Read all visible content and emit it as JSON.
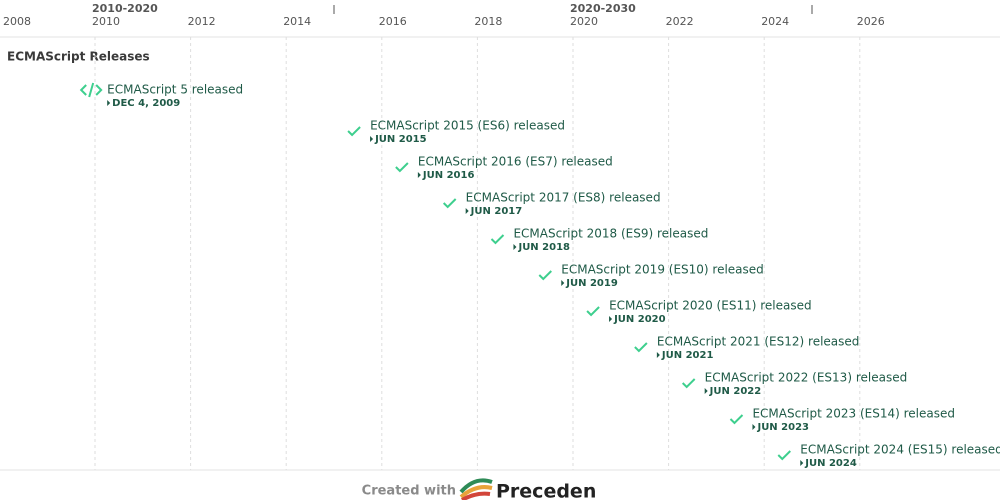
{
  "header": {
    "decades": [
      "2010-2020",
      "2020-2030"
    ],
    "years": [
      "2008",
      "2010",
      "2012",
      "2014",
      "2016",
      "2018",
      "2020",
      "2022",
      "2024",
      "2026"
    ]
  },
  "title": "ECMAScript Releases",
  "events": [
    {
      "title": "ECMAScript 5 released",
      "date": "DEC 4, 2009"
    },
    {
      "title": "ECMAScript 2015 (ES6) released",
      "date": "JUN 2015"
    },
    {
      "title": "ECMAScript 2016 (ES7) released",
      "date": "JUN 2016"
    },
    {
      "title": "ECMAScript 2017 (ES8) released",
      "date": "JUN 2017"
    },
    {
      "title": "ECMAScript 2018 (ES9) released",
      "date": "JUN 2018"
    },
    {
      "title": "ECMAScript 2019 (ES10) released",
      "date": "JUN 2019"
    },
    {
      "title": "ECMAScript 2020 (ES11) released",
      "date": "JUN 2020"
    },
    {
      "title": "ECMAScript 2021 (ES12) released",
      "date": "JUN 2021"
    },
    {
      "title": "ECMAScript 2022 (ES13) released",
      "date": "JUN 2022"
    },
    {
      "title": "ECMAScript 2023 (ES14) released",
      "date": "JUN 2023"
    },
    {
      "title": "ECMAScript 2024 (ES15) released",
      "date": "JUN 2024"
    }
  ],
  "footer": {
    "created": "Created with",
    "brand": "Preceden"
  }
}
